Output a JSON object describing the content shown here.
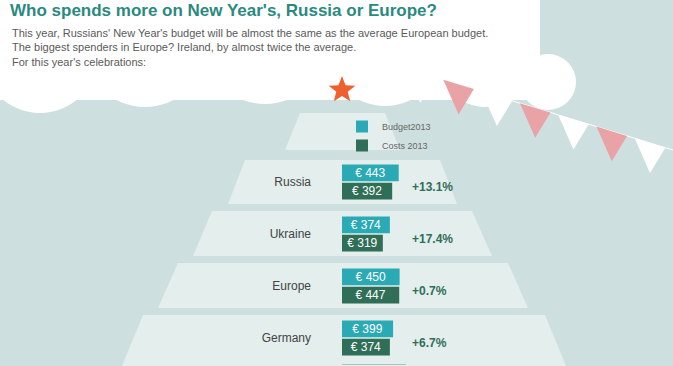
{
  "chart_data": {
    "type": "bar",
    "title": "Who spends more on New Year's, Russia or Europe?",
    "subtitle": [
      "This year, Russians' New Year's budget will be almost the same as the average European budget.",
      "The biggest spenders in Europe? Ireland, by almost twice the average.",
      "For this year's celebrations:"
    ],
    "orientation": "horizontal",
    "categories": [
      "Russia",
      "Ukraine",
      "Europe",
      "Germany"
    ],
    "series": [
      {
        "name": "Budget2013",
        "color": "#2aaab5",
        "values": [
          443,
          374,
          450,
          399
        ],
        "value_labels": [
          "€ 443",
          "€ 374",
          "€ 450",
          "€ 399"
        ]
      },
      {
        "name": "Costs 2013",
        "color": "#2f6e57",
        "values": [
          392,
          319,
          447,
          374
        ],
        "value_labels": [
          "€ 392",
          "€ 319",
          "€ 447",
          "€ 374"
        ]
      }
    ],
    "annotations": [
      "+13.1%",
      "+17.4%",
      "+0.7%",
      "+6.7%"
    ],
    "xlim": [
      0,
      500
    ],
    "data_labels": true,
    "tick_labels": "y",
    "grid": false,
    "legend": "top"
  }
}
